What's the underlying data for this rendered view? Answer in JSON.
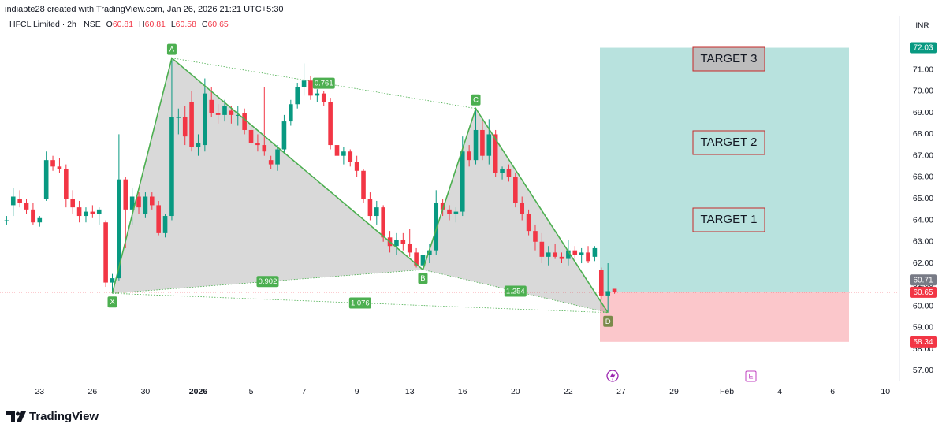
{
  "header": {
    "credit": "indiapte28 created with TradingView.com, Jan 26, 2026 21:21 UTC+5:30"
  },
  "footer": {
    "brand": "TradingView"
  },
  "chart_data": {
    "type": "candlestick",
    "symbol": "HFCL Limited · 2h · NSE",
    "currency": "INR",
    "legend": {
      "open_label": "O",
      "open": 60.81,
      "high_label": "H",
      "high": 60.81,
      "low_label": "L",
      "low": 60.58,
      "close_label": "C",
      "close": 60.65
    },
    "up_color": "#089981",
    "down_color": "#f23645",
    "open": [
      64.0,
      64.7,
      65.0,
      64.8,
      64.5,
      63.9,
      65.0,
      66.8,
      66.5,
      66.4,
      65.0,
      64.6,
      64.2,
      64.4,
      64.3,
      63.9,
      61.1,
      61.3,
      65.9,
      64.5,
      65.1,
      64.3,
      65.1,
      64.7,
      63.4,
      64.2,
      68.8,
      68.8,
      69.5,
      67.4,
      67.5,
      69.6,
      69.0,
      68.9,
      69.1,
      68.9,
      69.0,
      68.2,
      67.6,
      67.5,
      66.8,
      66.6,
      67.3,
      68.6,
      69.4,
      70.2,
      70.5,
      69.8,
      69.9,
      69.5,
      67.5,
      67.0,
      67.2,
      66.7,
      66.3,
      65.0,
      64.2,
      64.6,
      63.2,
      62.8,
      63.1,
      62.9,
      62.5,
      61.9,
      62.4,
      62.6,
      64.8,
      64.5,
      64.3,
      64.4,
      67.2,
      66.8,
      68.2,
      67.0,
      68.0,
      66.2,
      66.4,
      66.0,
      64.8,
      64.3,
      63.5,
      63.0,
      62.3,
      62.5,
      62.3,
      62.2,
      62.6,
      62.4,
      62.5,
      62.3,
      61.7,
      60.5,
      60.81
    ],
    "high": [
      64.2,
      65.5,
      65.4,
      65.0,
      64.8,
      64.2,
      67.2,
      67.0,
      66.9,
      66.6,
      65.4,
      64.9,
      64.6,
      64.7,
      64.6,
      64.0,
      61.5,
      68.0,
      66.0,
      65.5,
      65.3,
      65.3,
      65.3,
      64.9,
      64.3,
      71.55,
      69.2,
      69.3,
      70.0,
      68.0,
      70.6,
      70.2,
      69.4,
      69.6,
      69.3,
      69.3,
      69.2,
      68.5,
      68.0,
      70.2,
      67.0,
      67.5,
      68.9,
      69.6,
      70.4,
      71.3,
      70.7,
      70.1,
      70.0,
      69.7,
      67.7,
      67.4,
      67.3,
      67.0,
      66.4,
      65.3,
      64.9,
      64.7,
      63.5,
      63.4,
      63.4,
      63.6,
      62.7,
      62.6,
      62.9,
      65.4,
      65.0,
      64.7,
      64.6,
      67.9,
      67.5,
      69.2,
      68.6,
      68.7,
      68.2,
      66.5,
      66.6,
      66.2,
      65.1,
      64.5,
      63.8,
      63.4,
      62.8,
      62.9,
      62.5,
      63.1,
      62.8,
      62.7,
      62.8,
      62.8,
      61.8,
      62.0,
      60.81
    ],
    "low": [
      63.8,
      64.2,
      64.6,
      64.3,
      63.8,
      63.7,
      64.9,
      66.3,
      66.2,
      64.6,
      64.3,
      63.9,
      63.9,
      64.1,
      63.8,
      60.9,
      60.6,
      61.2,
      62.7,
      63.8,
      64.3,
      64.1,
      64.5,
      63.3,
      63.2,
      64.0,
      68.0,
      67.5,
      67.2,
      67.0,
      67.2,
      68.8,
      68.5,
      68.6,
      68.5,
      68.4,
      68.0,
      67.5,
      67.2,
      67.0,
      66.4,
      66.3,
      67.1,
      68.4,
      69.2,
      69.8,
      69.6,
      69.5,
      69.3,
      67.3,
      66.8,
      66.6,
      66.5,
      66.0,
      64.8,
      64.0,
      63.8,
      63.0,
      62.5,
      62.4,
      62.6,
      62.3,
      61.8,
      61.7,
      62.0,
      62.4,
      64.2,
      64.0,
      63.9,
      64.2,
      66.5,
      66.6,
      66.8,
      66.6,
      66.0,
      65.9,
      65.8,
      64.6,
      64.0,
      63.3,
      62.6,
      62.0,
      61.9,
      62.2,
      62.0,
      61.9,
      62.2,
      62.0,
      62.0,
      62.1,
      60.3,
      59.7,
      60.58
    ],
    "close": [
      64.0,
      65.1,
      64.8,
      64.5,
      63.9,
      64.1,
      66.8,
      66.5,
      66.4,
      65.0,
      64.6,
      64.2,
      64.4,
      64.3,
      64.5,
      61.1,
      61.3,
      65.9,
      64.5,
      65.1,
      64.6,
      65.1,
      64.7,
      63.4,
      64.2,
      68.8,
      68.8,
      67.9,
      67.4,
      67.6,
      69.9,
      69.0,
      68.9,
      69.3,
      68.9,
      68.9,
      68.2,
      67.6,
      67.5,
      67.2,
      66.6,
      67.3,
      68.6,
      69.4,
      70.2,
      70.5,
      69.8,
      69.9,
      69.5,
      67.5,
      67.0,
      67.2,
      66.7,
      66.3,
      65.0,
      64.2,
      64.6,
      63.2,
      62.8,
      63.1,
      62.9,
      62.5,
      61.9,
      62.4,
      62.6,
      64.8,
      64.5,
      64.3,
      64.4,
      67.2,
      66.8,
      68.2,
      67.0,
      68.0,
      66.2,
      66.4,
      66.0,
      64.8,
      64.3,
      63.5,
      63.0,
      62.3,
      62.5,
      62.3,
      62.2,
      62.6,
      62.4,
      62.5,
      62.1,
      62.7,
      60.5,
      60.7,
      60.65
    ],
    "xlim": [
      -1,
      135
    ],
    "xticks": [
      {
        "value": 5,
        "label": "23"
      },
      {
        "value": 13,
        "label": "26"
      },
      {
        "value": 21,
        "label": "30"
      },
      {
        "value": 29,
        "label": "2026"
      },
      {
        "value": 37,
        "label": "5"
      },
      {
        "value": 45,
        "label": "7"
      },
      {
        "value": 53,
        "label": "9"
      },
      {
        "value": 61,
        "label": "13"
      },
      {
        "value": 69,
        "label": "16"
      },
      {
        "value": 77,
        "label": "20"
      },
      {
        "value": 85,
        "label": "22"
      },
      {
        "value": 93,
        "label": "27"
      },
      {
        "value": 101,
        "label": "29"
      },
      {
        "value": 109,
        "label": "Feb"
      },
      {
        "value": 117,
        "label": "4"
      },
      {
        "value": 125,
        "label": "6"
      },
      {
        "value": 133,
        "label": "10"
      }
    ],
    "ylim": [
      56.5,
      72.6
    ],
    "yticks": [
      {
        "value": 57,
        "label": "57.00"
      },
      {
        "value": 58,
        "label": "58.00"
      },
      {
        "value": 59,
        "label": "59.00"
      },
      {
        "value": 60,
        "label": "60.00"
      },
      {
        "value": 61,
        "label": "61.00"
      },
      {
        "value": 62,
        "label": "62.00"
      },
      {
        "value": 63,
        "label": "63.00"
      },
      {
        "value": 64,
        "label": "64.00"
      },
      {
        "value": 65,
        "label": "65.00"
      },
      {
        "value": 66,
        "label": "66.00"
      },
      {
        "value": 67,
        "label": "67.00"
      },
      {
        "value": 68,
        "label": "68.00"
      },
      {
        "value": 69,
        "label": "69.00"
      },
      {
        "value": 70,
        "label": "70.00"
      },
      {
        "value": 71,
        "label": "71.00"
      }
    ],
    "grid": false,
    "price_labels": [
      {
        "value": 72.03,
        "color": "#089981"
      },
      {
        "value": 60.71,
        "color": "#787b86"
      },
      {
        "value": 60.65,
        "color": "#f23645"
      },
      {
        "value": 58.34,
        "color": "#f23645"
      }
    ],
    "position": {
      "entry": 60.65,
      "target": 72.03,
      "stop": 58.34
    },
    "pattern": {
      "color": "#4caf50",
      "points": [
        {
          "label": "X",
          "value": 60.6
        },
        {
          "label": "A",
          "value": 71.55
        },
        {
          "label": "B",
          "value": 61.7
        },
        {
          "label": "C",
          "value": 69.2
        },
        {
          "label": "D",
          "value": 59.7
        }
      ],
      "ratios": [
        0.761,
        0.902,
        1.254,
        1.076
      ]
    },
    "annotations": [
      {
        "text": "TARGET 3"
      },
      {
        "text": "TARGET 2"
      },
      {
        "text": "TARGET 1"
      }
    ],
    "event": "E"
  }
}
